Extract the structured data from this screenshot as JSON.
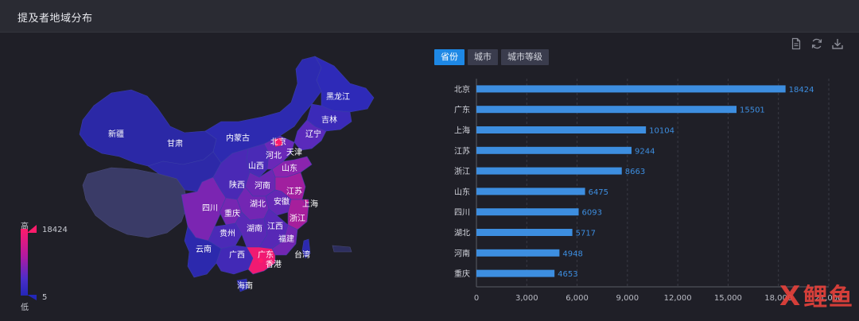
{
  "panel": {
    "title": "提及者地域分布"
  },
  "tabs": [
    {
      "label": "省份",
      "active": true
    },
    {
      "label": "城市",
      "active": false
    },
    {
      "label": "城市等级",
      "active": false
    }
  ],
  "toolbar": {
    "icons": [
      "document-icon",
      "refresh-icon",
      "download-icon"
    ]
  },
  "map": {
    "legend": {
      "high_label": "高",
      "low_label": "低",
      "max": "18424",
      "min": "5"
    },
    "province_labels": [
      "新疆",
      "甘肃",
      "内蒙古",
      "黑龙江",
      "吉林",
      "辽宁",
      "北京",
      "天津",
      "河北",
      "山西",
      "山东",
      "陕西",
      "河南",
      "江苏",
      "安徽",
      "上海",
      "四川",
      "重庆",
      "湖北",
      "浙江",
      "贵州",
      "湖南",
      "江西",
      "福建",
      "云南",
      "广西",
      "广东",
      "台湾",
      "香港",
      "海南"
    ]
  },
  "chart_data": {
    "type": "bar",
    "orientation": "horizontal",
    "categories": [
      "北京",
      "广东",
      "上海",
      "江苏",
      "浙江",
      "山东",
      "四川",
      "湖北",
      "河南",
      "重庆"
    ],
    "values": [
      18424,
      15501,
      10104,
      9244,
      8663,
      6475,
      6093,
      5717,
      4948,
      4653
    ],
    "xlim": [
      0,
      21000
    ],
    "xticks": [
      "0",
      "3,000",
      "6,000",
      "9,000",
      "12,000",
      "15,000",
      "18,000",
      "21,000"
    ],
    "grid": true,
    "bar_color": "#3d8ee0",
    "label_color": "#3d8ee0"
  },
  "watermark": {
    "text": "X鲤鱼"
  }
}
